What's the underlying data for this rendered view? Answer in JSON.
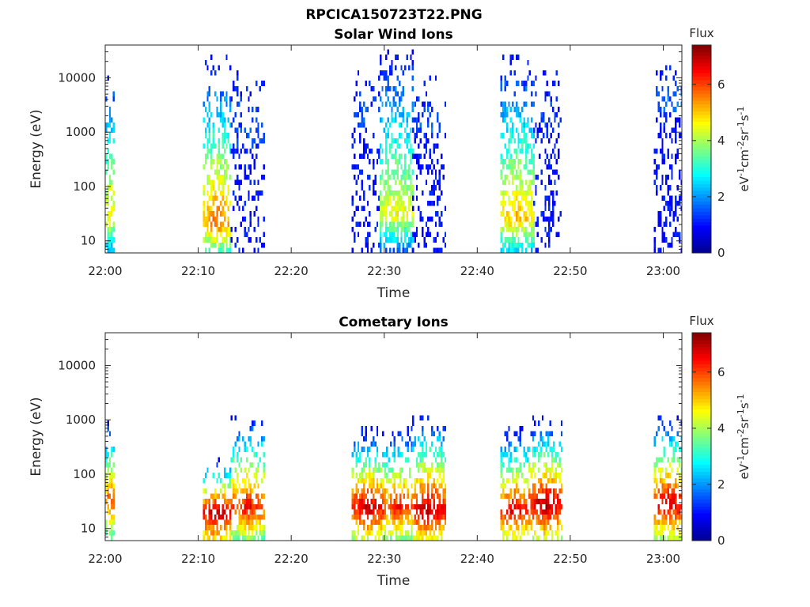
{
  "figure": {
    "title": "RPCICA150723T22.PNG"
  },
  "colormap": {
    "name": "jet",
    "stops": [
      "#00008f",
      "#0000ff",
      "#00ffff",
      "#ffff00",
      "#ff0000",
      "#800000"
    ]
  },
  "chart_data": [
    {
      "type": "heatmap",
      "title": "Solar Wind Ions",
      "xlabel": "Time",
      "ylabel": "Energy (eV)",
      "xlim": [
        "22:00",
        "23:02"
      ],
      "xticks": [
        "22:00",
        "22:10",
        "22:20",
        "22:30",
        "22:40",
        "22:50",
        "23:00"
      ],
      "yscale": "log",
      "ylim": [
        6,
        40000
      ],
      "yticks": [
        10,
        100,
        1000,
        10000
      ],
      "yticklabels": [
        "10",
        "100",
        "1000",
        "10000"
      ],
      "colorbar": {
        "label_top": "Flux",
        "label": "eV-1cm-2sr-1s-1",
        "range": [
          0,
          7.4
        ],
        "ticks": [
          "0",
          "2",
          "4",
          "6"
        ]
      },
      "bursts": [
        {
          "start": "22:00",
          "end": "22:01",
          "peak_energy_eV": 28,
          "peak_flux": 5.0,
          "max_energy_eV": 15000,
          "density": 0.75
        },
        {
          "start": "22:10.5",
          "end": "22:13.5",
          "peak_energy_eV": 22,
          "peak_flux": 5.8,
          "max_energy_eV": 22000,
          "density": 0.7
        },
        {
          "start": "22:13.5",
          "end": "22:17",
          "peak_energy_eV": 600,
          "peak_flux": 1.6,
          "max_energy_eV": 12000,
          "density": 0.3
        },
        {
          "start": "22:26.5",
          "end": "22:29.5",
          "peak_energy_eV": 1500,
          "peak_flux": 1.5,
          "max_energy_eV": 12000,
          "density": 0.3
        },
        {
          "start": "22:29.5",
          "end": "22:33",
          "peak_energy_eV": 30,
          "peak_flux": 4.7,
          "max_energy_eV": 30000,
          "density": 0.75
        },
        {
          "start": "22:33",
          "end": "22:36.5",
          "peak_energy_eV": 1000,
          "peak_flux": 1.6,
          "max_energy_eV": 12000,
          "density": 0.3
        },
        {
          "start": "22:42.5",
          "end": "22:46",
          "peak_energy_eV": 25,
          "peak_flux": 5.2,
          "max_energy_eV": 24000,
          "density": 0.72
        },
        {
          "start": "22:46",
          "end": "22:49",
          "peak_energy_eV": 1500,
          "peak_flux": 1.5,
          "max_energy_eV": 15000,
          "density": 0.3
        },
        {
          "start": "22:59",
          "end": "23:02",
          "peak_energy_eV": 3000,
          "peak_flux": 1.8,
          "max_energy_eV": 15000,
          "density": 0.35
        }
      ]
    },
    {
      "type": "heatmap",
      "title": "Cometary Ions",
      "xlabel": "Time",
      "ylabel": "Energy (eV)",
      "xlim": [
        "22:00",
        "23:02"
      ],
      "xticks": [
        "22:00",
        "22:10",
        "22:20",
        "22:30",
        "22:40",
        "22:50",
        "23:00"
      ],
      "yscale": "log",
      "ylim": [
        6,
        40000
      ],
      "yticks": [
        10,
        100,
        1000,
        10000
      ],
      "yticklabels": [
        "10",
        "100",
        "1000",
        "10000"
      ],
      "colorbar": {
        "label_top": "Flux",
        "label": "eV-1cm-2sr-1s-1",
        "range": [
          0,
          7.4
        ],
        "ticks": [
          "0",
          "2",
          "4",
          "6"
        ]
      },
      "bursts": [
        {
          "start": "22:00",
          "end": "22:01",
          "peak_energy_eV": 30,
          "peak_flux": 6.2,
          "max_energy_eV": 1100,
          "density": 0.75
        },
        {
          "start": "22:10.5",
          "end": "22:13.5",
          "peak_energy_eV": 20,
          "peak_flux": 7.1,
          "max_energy_eV": 200,
          "density": 0.7
        },
        {
          "start": "22:13.5",
          "end": "22:17",
          "peak_energy_eV": 25,
          "peak_flux": 6.5,
          "max_energy_eV": 1200,
          "density": 0.7
        },
        {
          "start": "22:26.5",
          "end": "22:30",
          "peak_energy_eV": 25,
          "peak_flux": 7.0,
          "max_energy_eV": 700,
          "density": 0.75
        },
        {
          "start": "22:30",
          "end": "22:33",
          "peak_energy_eV": 25,
          "peak_flux": 6.5,
          "max_energy_eV": 700,
          "density": 0.75
        },
        {
          "start": "22:33",
          "end": "22:36.5",
          "peak_energy_eV": 22,
          "peak_flux": 7.1,
          "max_energy_eV": 1200,
          "density": 0.75
        },
        {
          "start": "22:42.5",
          "end": "22:45.5",
          "peak_energy_eV": 22,
          "peak_flux": 6.8,
          "max_energy_eV": 650,
          "density": 0.72
        },
        {
          "start": "22:45.5",
          "end": "22:49",
          "peak_energy_eV": 28,
          "peak_flux": 7.2,
          "max_energy_eV": 1000,
          "density": 0.75
        },
        {
          "start": "22:59",
          "end": "23:02",
          "peak_energy_eV": 28,
          "peak_flux": 7.0,
          "max_energy_eV": 1200,
          "density": 0.72
        }
      ]
    }
  ]
}
